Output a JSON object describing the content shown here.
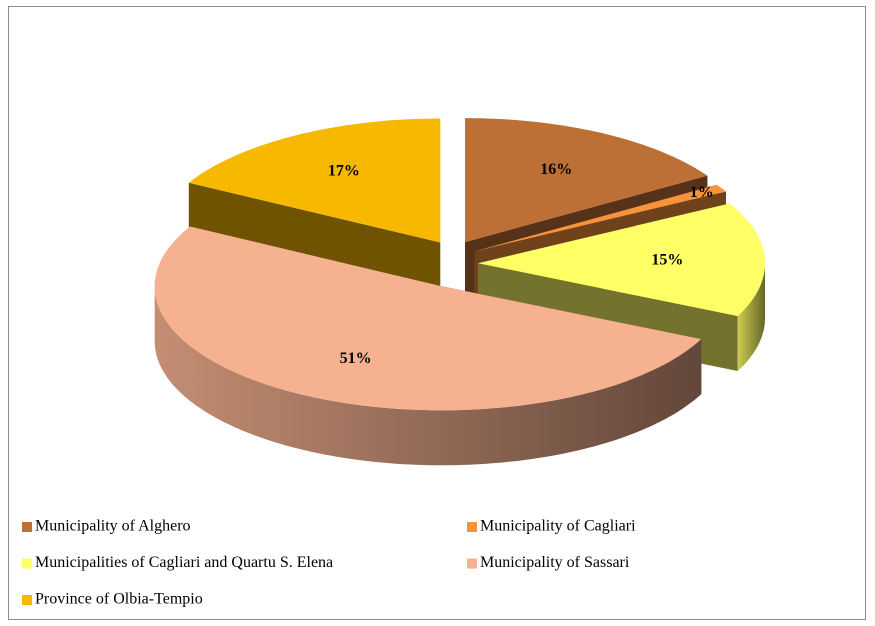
{
  "chart_data": {
    "type": "pie",
    "categories": [
      "Municipality of Alghero",
      "Municipality of Cagliari",
      "Municipalities of Cagliari and Quartu S. Elena",
      "Municipality of Sassari",
      "Province of Olbia-Tempio"
    ],
    "values": [
      16,
      1,
      15,
      51,
      17
    ],
    "value_labels": [
      "16%",
      "1%",
      "15%",
      "51%",
      "17%"
    ],
    "colors": [
      "#bd7035",
      "#f7933b",
      "#ffff66",
      "#f5b190",
      "#f6b900"
    ],
    "legend": "bottom"
  }
}
